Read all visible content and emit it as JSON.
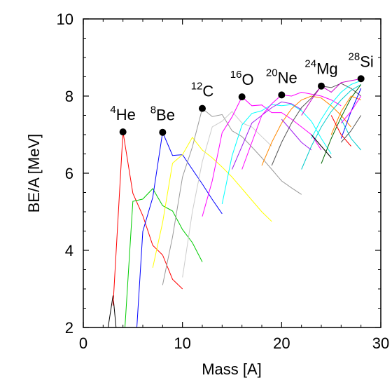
{
  "chart_data": {
    "type": "line",
    "title": "",
    "xlabel": "Mass [A]",
    "ylabel": "BE/A [MeV]",
    "xlim": [
      0,
      30
    ],
    "ylim": [
      2,
      10
    ],
    "xticks": [
      0,
      10,
      20,
      30
    ],
    "yticks": [
      2,
      4,
      6,
      8,
      10
    ],
    "grid": false,
    "series": [
      {
        "color": "#000000",
        "points": [
          [
            2.5,
            2.0
          ],
          [
            3,
            2.83
          ],
          [
            3.3,
            2.0
          ]
        ]
      },
      {
        "color": "#ff0000",
        "points": [
          [
            3,
            2.57
          ],
          [
            4,
            7.07
          ],
          [
            5,
            5.48
          ],
          [
            6,
            4.9
          ],
          [
            7,
            4.13
          ],
          [
            8,
            3.88
          ],
          [
            9,
            3.25
          ],
          [
            10,
            3.0
          ]
        ]
      },
      {
        "color": "#00cc00",
        "points": [
          [
            4.2,
            2.0
          ],
          [
            5,
            5.27
          ],
          [
            6,
            5.33
          ],
          [
            7,
            5.6
          ],
          [
            8,
            5.16
          ],
          [
            9,
            5.02
          ],
          [
            10,
            4.54
          ],
          [
            11,
            4.2
          ],
          [
            12,
            3.7
          ]
        ]
      },
      {
        "color": "#0000ff",
        "points": [
          [
            5.4,
            2.0
          ],
          [
            6,
            4.49
          ],
          [
            7,
            5.37
          ],
          [
            8,
            7.06
          ],
          [
            9,
            6.46
          ],
          [
            10,
            6.48
          ],
          [
            11,
            6.1
          ],
          [
            12,
            5.72
          ],
          [
            13,
            5.32
          ],
          [
            14,
            4.95
          ]
        ]
      },
      {
        "color": "#ffff00",
        "points": [
          [
            7,
            3.55
          ],
          [
            8,
            4.72
          ],
          [
            9,
            6.26
          ],
          [
            10,
            6.48
          ],
          [
            11,
            6.93
          ],
          [
            12,
            6.6
          ],
          [
            13,
            6.4
          ],
          [
            14,
            6.16
          ],
          [
            15,
            5.9
          ],
          [
            16,
            5.6
          ],
          [
            17,
            5.3
          ],
          [
            18,
            5.0
          ],
          [
            19,
            4.75
          ]
        ]
      },
      {
        "color": "#999999",
        "points": [
          [
            8,
            3.1
          ],
          [
            9,
            4.35
          ],
          [
            10,
            5.9
          ],
          [
            11,
            6.68
          ],
          [
            12,
            7.68
          ],
          [
            13,
            7.47
          ],
          [
            14,
            7.52
          ],
          [
            15,
            7.1
          ],
          [
            16,
            6.95
          ],
          [
            17,
            6.68
          ],
          [
            18,
            6.4
          ],
          [
            19,
            6.1
          ],
          [
            20,
            5.8
          ],
          [
            21,
            5.62
          ],
          [
            22,
            5.45
          ]
        ]
      },
      {
        "color": "#cccccc",
        "points": [
          [
            10,
            3.3
          ],
          [
            11,
            5.0
          ],
          [
            12,
            6.3
          ],
          [
            13,
            7.2
          ],
          [
            14,
            7.35
          ],
          [
            15,
            7.6
          ],
          [
            16,
            7.3
          ],
          [
            17,
            7.2
          ],
          [
            18,
            6.95
          ],
          [
            19,
            6.7
          ]
        ]
      },
      {
        "color": "#ff00ff",
        "points": [
          [
            12,
            4.88
          ],
          [
            13,
            5.8
          ],
          [
            14,
            7.05
          ],
          [
            15,
            7.46
          ],
          [
            16,
            7.98
          ],
          [
            17,
            7.75
          ],
          [
            18,
            7.77
          ],
          [
            19,
            7.57
          ],
          [
            20,
            7.57
          ],
          [
            21,
            7.4
          ],
          [
            22,
            7.2
          ],
          [
            23,
            7.0
          ],
          [
            24,
            6.6
          ]
        ]
      },
      {
        "color": "#00ffff",
        "points": [
          [
            14,
            5.2
          ],
          [
            15,
            6.45
          ],
          [
            16,
            7.25
          ],
          [
            17,
            7.55
          ],
          [
            18,
            7.62
          ],
          [
            19,
            7.78
          ],
          [
            20,
            7.75
          ],
          [
            21,
            7.78
          ],
          [
            22,
            7.62
          ],
          [
            23,
            7.35
          ],
          [
            24,
            6.9
          ],
          [
            25,
            6.5
          ]
        ]
      },
      {
        "color": "#a020f0",
        "points": [
          [
            15,
            6.1
          ],
          [
            16,
            6.7
          ],
          [
            17,
            7.3
          ],
          [
            18,
            7.5
          ],
          [
            19,
            7.7
          ],
          [
            20,
            7.85
          ],
          [
            21,
            7.8
          ],
          [
            22,
            7.65
          ]
        ]
      },
      {
        "color": "#ff8800",
        "points": [
          [
            18,
            6.2
          ],
          [
            19,
            6.8
          ],
          [
            20,
            7.3
          ],
          [
            21,
            7.67
          ],
          [
            22,
            7.9
          ],
          [
            23,
            8.0
          ],
          [
            24,
            7.95
          ],
          [
            25,
            7.75
          ],
          [
            26,
            7.5
          ],
          [
            27,
            7.2
          ]
        ]
      },
      {
        "color": "#ff00ff",
        "points": [
          [
            16,
            6.1
          ],
          [
            17,
            6.8
          ],
          [
            18,
            7.5
          ],
          [
            19,
            7.8
          ],
          [
            20,
            8.03
          ],
          [
            21,
            8.0
          ],
          [
            22,
            8.1
          ],
          [
            23,
            8.05
          ],
          [
            24,
            8.0
          ],
          [
            25,
            7.9
          ],
          [
            26,
            7.75
          ]
        ]
      },
      {
        "color": "#555555",
        "points": [
          [
            19,
            6.2
          ],
          [
            20,
            6.8
          ],
          [
            21,
            7.3
          ],
          [
            22,
            7.7
          ],
          [
            23,
            7.95
          ],
          [
            24,
            8.26
          ],
          [
            25,
            8.22
          ],
          [
            26,
            8.33
          ],
          [
            27,
            8.2
          ],
          [
            28,
            8.0
          ]
        ]
      },
      {
        "color": "#00cccc",
        "points": [
          [
            22,
            6.1
          ],
          [
            23,
            6.7
          ],
          [
            24,
            7.2
          ],
          [
            25,
            7.6
          ],
          [
            26,
            7.9
          ],
          [
            27,
            8.15
          ],
          [
            28,
            8.3
          ]
        ]
      },
      {
        "color": "#00ffff",
        "points": [
          [
            23,
            6.9
          ],
          [
            24,
            7.4
          ],
          [
            25,
            7.8
          ],
          [
            26,
            8.1
          ],
          [
            27,
            8.3
          ],
          [
            28,
            8.4
          ]
        ]
      },
      {
        "color": "#006600",
        "points": [
          [
            24,
            6.25
          ],
          [
            25,
            6.9
          ],
          [
            26,
            7.45
          ],
          [
            27,
            7.95
          ],
          [
            28,
            8.3
          ]
        ]
      },
      {
        "color": "#ff8800",
        "points": [
          [
            25,
            7.0
          ],
          [
            26,
            7.6
          ],
          [
            27,
            8.0
          ],
          [
            28,
            7.9
          ]
        ]
      },
      {
        "color": "#cc00cc",
        "points": [
          [
            22,
            7.5
          ],
          [
            23,
            7.9
          ],
          [
            24,
            8.26
          ],
          [
            25,
            8.1
          ],
          [
            26,
            8.35
          ],
          [
            27,
            8.4
          ],
          [
            28,
            8.45
          ]
        ]
      },
      {
        "color": "#0000ff",
        "points": [
          [
            26,
            6.9
          ],
          [
            27,
            7.6
          ],
          [
            28,
            8.2
          ]
        ]
      },
      {
        "color": "#00cccc",
        "points": [
          [
            26,
            7.4
          ],
          [
            27,
            6.9
          ],
          [
            28,
            6.6
          ]
        ]
      },
      {
        "color": "#ff0000",
        "points": [
          [
            25,
            7.5
          ],
          [
            26,
            7.0
          ],
          [
            27,
            6.7
          ]
        ]
      },
      {
        "color": "#000000",
        "points": [
          [
            23,
            7.0
          ],
          [
            24,
            6.7
          ],
          [
            25,
            6.4
          ]
        ]
      },
      {
        "color": "#ff00ff",
        "points": [
          [
            28,
            8.0
          ],
          [
            27,
            7.6
          ],
          [
            26,
            7.3
          ]
        ]
      },
      {
        "color": "#555555",
        "points": [
          [
            28,
            7.5
          ],
          [
            27,
            7.1
          ],
          [
            26,
            6.8
          ]
        ]
      },
      {
        "color": "#a020f0",
        "points": [
          [
            20,
            7.4
          ],
          [
            21,
            7.1
          ],
          [
            22,
            6.8
          ],
          [
            23,
            6.6
          ]
        ]
      }
    ],
    "nuclei": [
      {
        "mass_number": "4",
        "symbol": "He",
        "x": 4,
        "y": 7.07
      },
      {
        "mass_number": "8",
        "symbol": "Be",
        "x": 8,
        "y": 7.06
      },
      {
        "mass_number": "12",
        "symbol": "C",
        "x": 12,
        "y": 7.68
      },
      {
        "mass_number": "16",
        "symbol": "O",
        "x": 16,
        "y": 7.98
      },
      {
        "mass_number": "20",
        "symbol": "Ne",
        "x": 20,
        "y": 8.03
      },
      {
        "mass_number": "24",
        "symbol": "Mg",
        "x": 24,
        "y": 8.26
      },
      {
        "mass_number": "28",
        "symbol": "Si",
        "x": 28,
        "y": 8.45
      }
    ]
  }
}
